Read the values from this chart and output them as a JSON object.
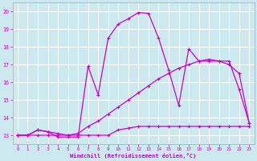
{
  "title": "",
  "xlabel": "Windchill (Refroidissement éolien,°C)",
  "bg_color": "#cce9f0",
  "line_color": "#cc00cc",
  "grid_color": "#ffffff",
  "xlim": [
    -0.5,
    23.5
  ],
  "ylim": [
    12.5,
    20.5
  ],
  "yticks": [
    13,
    14,
    15,
    16,
    17,
    18,
    19,
    20
  ],
  "xticks": [
    0,
    1,
    2,
    3,
    4,
    5,
    6,
    7,
    8,
    9,
    10,
    11,
    12,
    13,
    14,
    15,
    16,
    17,
    18,
    19,
    20,
    21,
    22,
    23
  ],
  "series1_x": [
    0,
    1,
    2,
    3,
    4,
    5,
    6,
    7,
    8,
    9,
    10,
    11,
    12,
    13,
    14,
    15,
    16,
    17,
    18,
    19,
    20,
    21,
    22,
    23
  ],
  "series1_y": [
    13.0,
    13.0,
    13.0,
    13.0,
    13.0,
    13.0,
    13.0,
    13.0,
    13.0,
    13.0,
    13.3,
    13.4,
    13.5,
    13.5,
    13.5,
    13.5,
    13.5,
    13.5,
    13.5,
    13.5,
    13.5,
    13.5,
    13.5,
    13.5
  ],
  "series2_x": [
    0,
    1,
    2,
    3,
    4,
    5,
    6,
    7,
    8,
    9,
    10,
    11,
    12,
    13,
    14,
    15,
    16,
    17,
    18,
    19,
    20,
    21,
    22,
    23
  ],
  "series2_y": [
    13.0,
    13.0,
    13.3,
    13.2,
    13.1,
    13.0,
    13.1,
    13.5,
    13.8,
    14.2,
    14.6,
    15.0,
    15.4,
    15.8,
    16.2,
    16.5,
    16.8,
    17.0,
    17.2,
    17.3,
    17.2,
    17.0,
    16.5,
    13.7
  ],
  "series3_x": [
    0,
    1,
    2,
    3,
    4,
    5,
    6,
    7,
    8,
    9,
    10,
    11,
    12,
    13,
    14,
    15,
    16,
    17,
    18,
    19,
    20,
    21,
    22,
    23
  ],
  "series3_y": [
    13.0,
    13.0,
    13.3,
    13.2,
    12.9,
    12.9,
    12.9,
    16.9,
    15.3,
    18.5,
    19.3,
    19.6,
    19.95,
    19.9,
    18.5,
    16.7,
    14.7,
    17.9,
    17.2,
    17.2,
    17.2,
    17.2,
    15.6,
    13.7
  ]
}
